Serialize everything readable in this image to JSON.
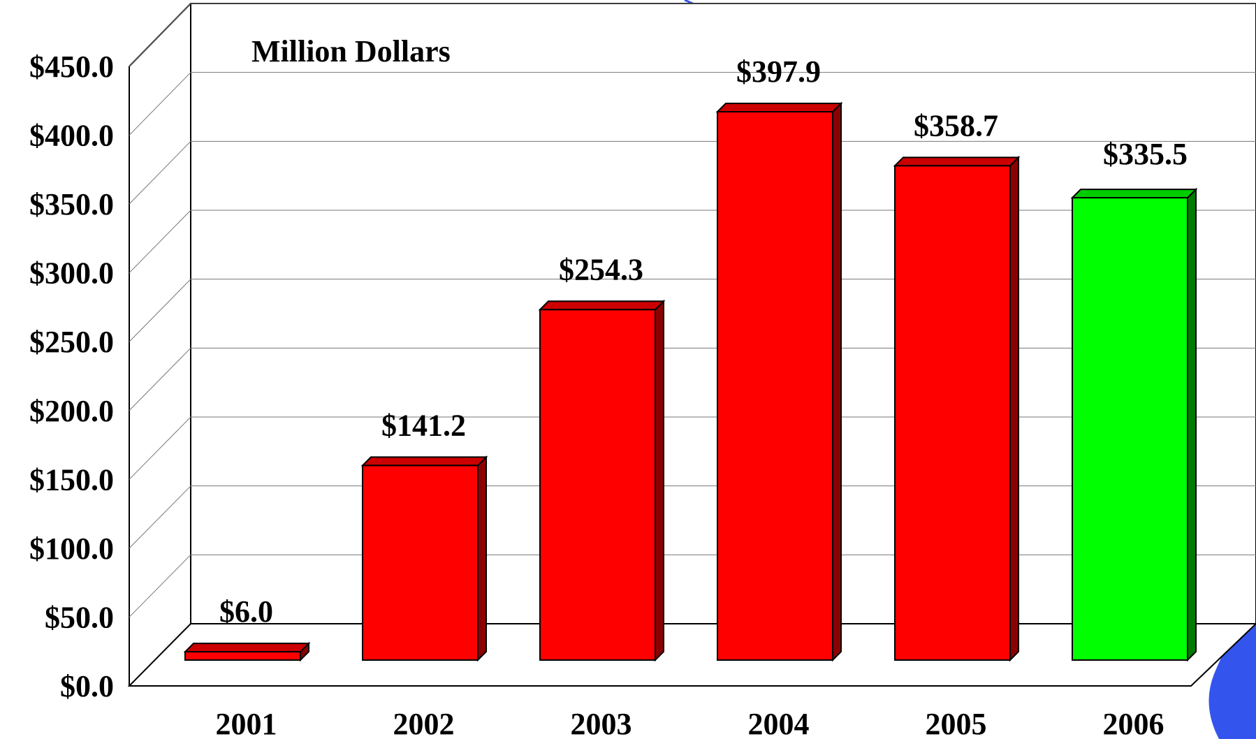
{
  "chart_data": {
    "type": "bar",
    "title": "",
    "unit_label": "Million Dollars",
    "categories": [
      "2001",
      "2002",
      "2003",
      "2004",
      "2005",
      "2006"
    ],
    "values": [
      6.0,
      141.2,
      254.3,
      397.9,
      358.7,
      335.5
    ],
    "data_labels": [
      "$6.0",
      "$141.2",
      "$254.3",
      "$397.9",
      "$358.7",
      "$335.5"
    ],
    "y_ticks": [
      "$0.0",
      "$50.0",
      "$100.0",
      "$150.0",
      "$200.0",
      "$250.0",
      "$300.0",
      "$350.0",
      "$400.0",
      "$450.0"
    ],
    "ylim": [
      0,
      450
    ],
    "grid": true,
    "bar_colors": [
      "#ff0000",
      "#ff0000",
      "#ff0000",
      "#ff0000",
      "#ff0000",
      "#00ff00"
    ],
    "bar_side_colors": [
      "#8b0000",
      "#8b0000",
      "#8b0000",
      "#8b0000",
      "#8b0000",
      "#007a00"
    ],
    "bar_top_colors": [
      "#cc0000",
      "#cc0000",
      "#cc0000",
      "#cc0000",
      "#cc0000",
      "#00cc00"
    ],
    "decoration_color": "#3355ee"
  }
}
